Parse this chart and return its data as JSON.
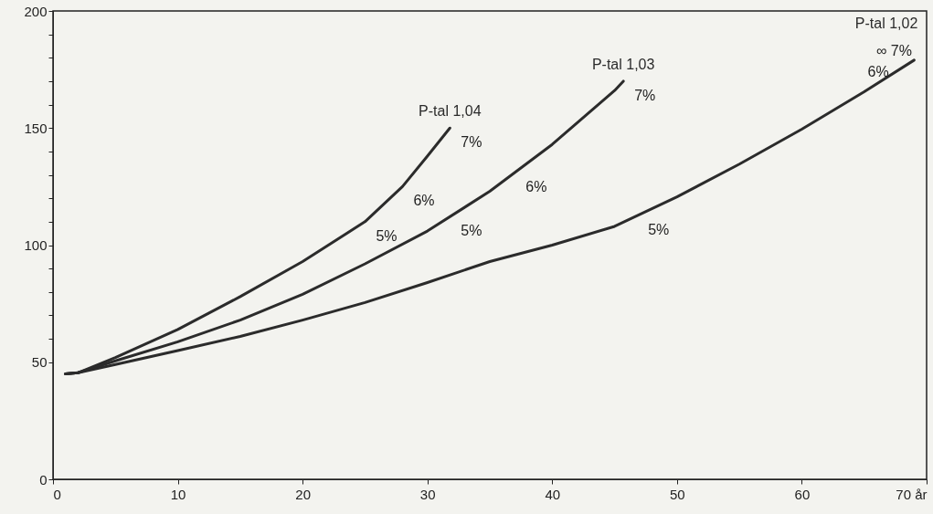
{
  "chart_data": {
    "type": "line",
    "xlim": [
      0,
      70
    ],
    "ylim": [
      0,
      200
    ],
    "xticks": [
      0,
      10,
      20,
      30,
      40,
      50,
      60,
      {
        "value": 70,
        "label": "70 år"
      }
    ],
    "yticks": [
      0,
      50,
      {
        "value": 60,
        "label": null
      },
      {
        "value": 70,
        "label": null
      },
      {
        "value": 80,
        "label": null
      },
      {
        "value": 90,
        "label": null
      },
      100,
      {
        "value": 110,
        "label": null
      },
      {
        "value": 120,
        "label": null
      },
      {
        "value": 130,
        "label": null
      },
      {
        "value": 140,
        "label": null
      },
      150,
      {
        "value": 160,
        "label": null
      },
      {
        "value": 170,
        "label": null
      },
      {
        "value": 180,
        "label": null
      },
      {
        "value": 190,
        "label": null
      },
      200
    ],
    "grid": false,
    "marker": "none",
    "line_style": "solid",
    "series": [
      {
        "name": "P-tal 1,04",
        "color": "#2b2b2b",
        "x": [
          1,
          2,
          5,
          10,
          15,
          20,
          25,
          28,
          30,
          31.8
        ],
        "values": [
          45,
          45.5,
          52,
          64,
          78,
          93,
          110,
          125,
          138,
          150
        ]
      },
      {
        "name": "P-tal 1,03",
        "color": "#2b2b2b",
        "x": [
          1,
          2,
          5,
          10,
          15,
          20,
          25,
          30,
          35,
          40,
          45,
          45.7
        ],
        "values": [
          45,
          45.5,
          50.6,
          58.7,
          68,
          79,
          92,
          106,
          123,
          143,
          166,
          170
        ]
      },
      {
        "name": "P-tal 1,02",
        "color": "#2b2b2b",
        "x": [
          1,
          2,
          5,
          10,
          15,
          20,
          25,
          30,
          35,
          40,
          45,
          50,
          55,
          60,
          65,
          69
        ],
        "values": [
          45,
          45.5,
          49,
          55,
          61,
          68,
          75.5,
          84,
          93,
          100,
          108,
          120.6,
          134.6,
          149.5,
          165.5,
          179
        ]
      }
    ],
    "annotations": [
      {
        "text": "7%",
        "x": 31.8,
        "y": 150
      },
      {
        "text": "6%",
        "x": 28,
        "y": 125
      },
      {
        "text": "5%",
        "x": 25,
        "y": 110
      },
      {
        "text": "7%",
        "x": 45.7,
        "y": 170
      },
      {
        "text": "6%",
        "x": 37,
        "y": 131
      },
      {
        "text": "5%",
        "x": 31.8,
        "y": 112.1
      },
      {
        "text": "5%",
        "x": 46.8,
        "y": 112.5
      },
      "∞ 7%",
      {
        "text": "6%",
        "x": 68,
        "y": 175.4
      }
    ]
  }
}
